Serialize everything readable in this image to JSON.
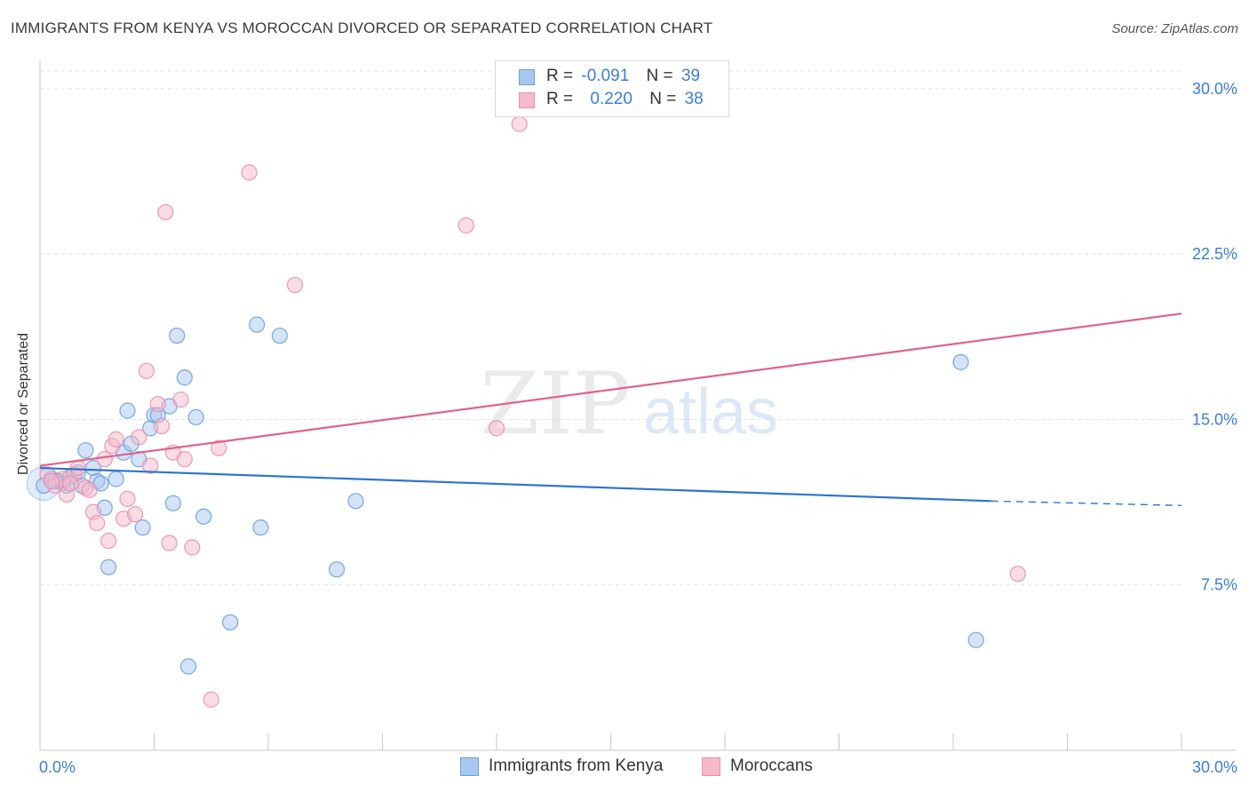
{
  "header": {
    "title": "IMMIGRANTS FROM KENYA VS MOROCCAN DIVORCED OR SEPARATED CORRELATION CHART",
    "source": "Source: ZipAtlas.com"
  },
  "watermark": {
    "zip": "ZIP",
    "atlas": "atlas"
  },
  "legend_top": {
    "rows": [
      {
        "r_label": "R =",
        "r_value": "-0.091",
        "n_label": "N =",
        "n_value": "39"
      },
      {
        "r_label": "R =",
        "r_value": "0.220",
        "n_label": "N =",
        "n_value": "38"
      }
    ]
  },
  "legend_bottom": {
    "items": [
      {
        "label": "Immigrants from Kenya"
      },
      {
        "label": "Moroccans"
      }
    ]
  },
  "colors": {
    "kenya_fill": "#a9c8f0",
    "kenya_stroke": "#6a9fde",
    "kenya_line": "#2f74cf",
    "moroccan_fill": "#f6b9cc",
    "moroccan_stroke": "#ea8fab",
    "moroccan_line": "#e0628e",
    "tick_label": "#3b7dd8",
    "grid": "#e2e2e2"
  },
  "chart_data": {
    "type": "scatter",
    "title": "IMMIGRANTS FROM KENYA VS MOROCCAN DIVORCED OR SEPARATED CORRELATION CHART",
    "xlabel": "",
    "ylabel": "Divorced or Separated",
    "xlim": [
      0,
      30
    ],
    "ylim": [
      0,
      30.8
    ],
    "x_tick_labels": [
      {
        "value": 0,
        "label": "0.0%"
      },
      {
        "value": 30,
        "label": "30.0%"
      }
    ],
    "y_tick_labels": [
      {
        "value": 7.5,
        "label": "7.5%"
      },
      {
        "value": 15,
        "label": "15.0%"
      },
      {
        "value": 22.5,
        "label": "22.5%"
      },
      {
        "value": 30,
        "label": "30.0%"
      }
    ],
    "grid": true,
    "legend": "bottom-center",
    "series": [
      {
        "name": "Immigrants from Kenya",
        "points": [
          [
            0.1,
            12.0
          ],
          [
            0.3,
            12.3
          ],
          [
            0.5,
            12.2
          ],
          [
            0.6,
            12.1
          ],
          [
            0.8,
            12.4
          ],
          [
            1.0,
            12.6
          ],
          [
            1.1,
            12.0
          ],
          [
            1.2,
            13.6
          ],
          [
            1.4,
            12.8
          ],
          [
            1.5,
            12.2
          ],
          [
            1.6,
            12.1
          ],
          [
            1.7,
            11.0
          ],
          [
            1.8,
            8.3
          ],
          [
            2.0,
            12.3
          ],
          [
            2.2,
            13.5
          ],
          [
            2.3,
            15.4
          ],
          [
            2.4,
            13.9
          ],
          [
            2.6,
            13.2
          ],
          [
            2.7,
            10.1
          ],
          [
            2.9,
            14.6
          ],
          [
            3.0,
            15.2
          ],
          [
            3.1,
            15.2
          ],
          [
            3.4,
            15.6
          ],
          [
            3.5,
            11.2
          ],
          [
            3.6,
            18.8
          ],
          [
            3.8,
            16.9
          ],
          [
            3.9,
            3.8
          ],
          [
            4.1,
            15.1
          ],
          [
            4.3,
            10.6
          ],
          [
            5.0,
            5.8
          ],
          [
            5.7,
            19.3
          ],
          [
            5.8,
            10.1
          ],
          [
            6.3,
            18.8
          ],
          [
            7.8,
            8.2
          ],
          [
            8.3,
            11.3
          ],
          [
            24.2,
            17.6
          ],
          [
            24.6,
            5.0
          ],
          [
            0.4,
            12.2
          ],
          [
            0.7,
            12.0
          ]
        ],
        "trend": {
          "x": [
            0,
            25.0
          ],
          "y": [
            12.8,
            11.3
          ],
          "dashed_to_x": 30,
          "dashed_to_y": 11.1
        }
      },
      {
        "name": "Moroccans",
        "points": [
          [
            0.2,
            12.5
          ],
          [
            0.4,
            12.0
          ],
          [
            0.6,
            12.3
          ],
          [
            0.7,
            11.6
          ],
          [
            0.9,
            12.5
          ],
          [
            1.0,
            12.8
          ],
          [
            1.2,
            11.9
          ],
          [
            1.3,
            11.8
          ],
          [
            1.4,
            10.8
          ],
          [
            1.5,
            10.3
          ],
          [
            1.7,
            13.2
          ],
          [
            1.8,
            9.5
          ],
          [
            1.9,
            13.8
          ],
          [
            2.0,
            14.1
          ],
          [
            2.2,
            10.5
          ],
          [
            2.3,
            11.4
          ],
          [
            2.5,
            10.7
          ],
          [
            2.6,
            14.2
          ],
          [
            2.8,
            17.2
          ],
          [
            2.9,
            12.9
          ],
          [
            3.1,
            15.7
          ],
          [
            3.2,
            14.7
          ],
          [
            3.3,
            24.4
          ],
          [
            3.4,
            9.4
          ],
          [
            3.5,
            13.5
          ],
          [
            3.7,
            15.9
          ],
          [
            3.8,
            13.2
          ],
          [
            4.0,
            9.2
          ],
          [
            4.5,
            2.3
          ],
          [
            4.7,
            13.7
          ],
          [
            5.5,
            26.2
          ],
          [
            6.7,
            21.1
          ],
          [
            11.2,
            23.8
          ],
          [
            12.0,
            14.6
          ],
          [
            12.6,
            28.4
          ],
          [
            25.7,
            8.0
          ],
          [
            0.3,
            12.2
          ],
          [
            0.8,
            12.1
          ]
        ],
        "trend": {
          "x": [
            0,
            30
          ],
          "y": [
            12.9,
            19.8
          ]
        }
      }
    ]
  }
}
